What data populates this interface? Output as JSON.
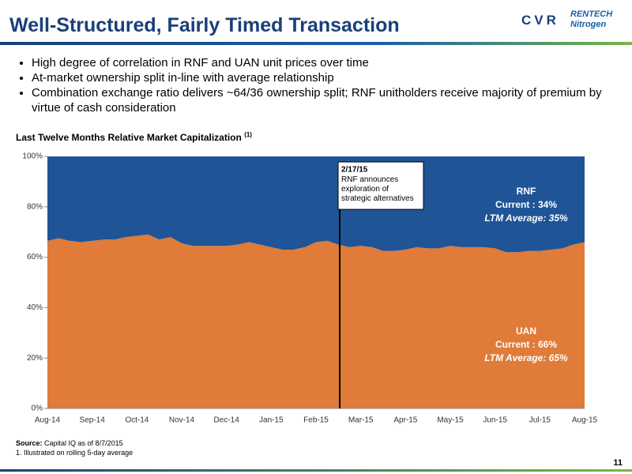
{
  "header": {
    "title": "Well-Structured, Fairly Timed Transaction",
    "logo_left": "CVR",
    "logo_right": "RENTECH Nitrogen"
  },
  "bullets": [
    "High degree of correlation in RNF and UAN unit prices over time",
    "At-market ownership split in-line with average relationship",
    "Combination exchange ratio delivers ~64/36 ownership split; RNF unitholders receive majority of premium by virtue of cash consideration"
  ],
  "chart_data": {
    "type": "stacked-area",
    "title": "Last Twelve Months Relative Market Capitalization",
    "title_note": "(1)",
    "categories": [
      "Aug-14",
      null,
      null,
      null,
      "Sep-14",
      null,
      null,
      null,
      "Oct-14",
      null,
      null,
      null,
      "Nov-14",
      null,
      null,
      null,
      "Dec-14",
      null,
      null,
      null,
      "Jan-15",
      null,
      null,
      null,
      "Feb-15",
      null,
      null,
      null,
      "Mar-15",
      null,
      null,
      null,
      "Apr-15",
      null,
      null,
      null,
      "May-15",
      null,
      null,
      null,
      "Jun-15",
      null,
      null,
      null,
      "Jul-15",
      null,
      null,
      null,
      "Aug-15"
    ],
    "series": [
      {
        "name": "UAN",
        "color": "#e07b39",
        "label_lines": [
          "UAN",
          "Current : 66%",
          "LTM Average: 65%"
        ],
        "values": [
          66.5,
          67.5,
          66.5,
          66,
          66.5,
          67,
          67,
          68,
          68.5,
          69,
          67,
          68,
          65.5,
          64.5,
          64.5,
          64.5,
          64.5,
          65,
          66,
          65,
          64,
          63,
          63,
          64,
          66,
          66.5,
          65,
          64,
          64.5,
          64,
          62.5,
          62.5,
          63,
          64,
          63.5,
          63.5,
          64.5,
          64,
          64,
          64,
          63.5,
          62,
          62,
          62.5,
          62.5,
          63,
          63.5,
          65,
          66
        ]
      },
      {
        "name": "RNF",
        "color": "#1f5597",
        "label_lines": [
          "RNF",
          "Current : 34%",
          "LTM Average: 35%"
        ],
        "values": [
          33.5,
          32.5,
          33.5,
          34,
          33.5,
          33,
          33,
          32,
          31.5,
          31,
          33,
          32,
          34.5,
          35.5,
          35.5,
          35.5,
          35.5,
          35,
          34,
          35,
          36,
          37,
          37,
          36,
          34,
          33.5,
          35,
          36,
          35.5,
          36,
          37.5,
          37.5,
          37,
          36,
          36.5,
          36.5,
          35.5,
          36,
          36,
          36,
          36.5,
          38,
          38,
          37.5,
          37.5,
          37,
          36.5,
          35,
          34
        ]
      }
    ],
    "ylim": [
      0,
      100
    ],
    "yticks": [
      {
        "value": 0,
        "label": "0%"
      },
      {
        "value": 20,
        "label": "20%"
      },
      {
        "value": 40,
        "label": "40%"
      },
      {
        "value": 60,
        "label": "60%"
      },
      {
        "value": 80,
        "label": "80%"
      },
      {
        "value": 100,
        "label": "100%"
      }
    ],
    "annotation": {
      "date": "2/17/15",
      "text": "RNF announces exploration of strategic alternatives"
    }
  },
  "footer": {
    "source_label": "Source:",
    "source": "Capital IQ as of 8/7/2015",
    "note": "1. Illustrated on rolling 5-day average",
    "page": "11"
  }
}
